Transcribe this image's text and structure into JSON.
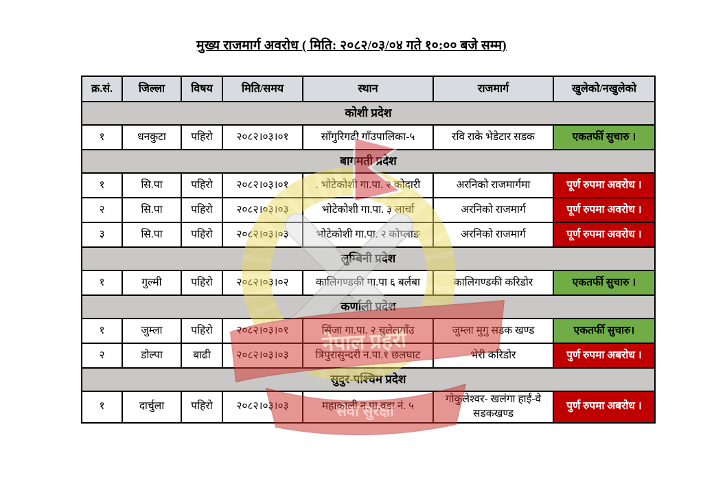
{
  "title": "मुख्य राजमार्ग अवरोध ( मिति: २०८२/०३/०४ गते १०:०० बजे सम्म)",
  "table": {
    "headers": [
      "क्र.सं.",
      "जिल्ला",
      "विषय",
      "मिति/समय",
      "स्थान",
      "राजमार्ग",
      "खुलेको/नखुलेको"
    ],
    "sections": [
      {
        "name": "कोशी प्रदेश",
        "rows": [
          {
            "sn": "१",
            "district": "धनकुटा",
            "subject": "पहिरो",
            "date": "२०८२।०३।०१",
            "location": "साँगुरिगढी गाँउपालिका-५",
            "highway": "रवि राके भेडेटार सडक",
            "status": "एकतर्फी सुचारु ।",
            "status_type": "open"
          }
        ]
      },
      {
        "name": "बागमती प्रदेश",
        "rows": [
          {
            "sn": "१",
            "district": "सि.पा",
            "subject": "पहिरो",
            "date": "२०८२।०३।०१",
            "location": ". भोटेकोशी गा.पा. २ कोदारी",
            "highway": "अरनिको राजमार्गमा",
            "status": "पूर्ण रुपमा अवरोध ।",
            "status_type": "blocked"
          },
          {
            "sn": "२",
            "district": "सि.पा",
            "subject": "पहिरो",
            "date": "२०८२।०३।०३",
            "location": "भोटेकोशी गा.पा. ३ लार्चा",
            "highway": "अरनिको राजमार्ग",
            "status": "पूर्ण रुपमा अवरोध ।",
            "status_type": "blocked"
          },
          {
            "sn": "३",
            "district": "सि.पा",
            "subject": "पहिरो",
            "date": "२०८२।०३।०३",
            "location": "भोटेकोशी गा.पा. २ कोप्लाङ",
            "highway": "अरनिको राजमार्ग",
            "status": "पूर्ण रुपमा अवरोध ।",
            "status_type": "blocked"
          }
        ]
      },
      {
        "name": "लुम्बिनी प्रदेश",
        "rows": [
          {
            "sn": "१",
            "district": "गुल्मी",
            "subject": "पहिरो",
            "date": "२०८२।०३।०२",
            "location": "कालिगण्डकी गा.पा ६ बर्लबा",
            "highway": "कालिगण्डकी करिडोर",
            "status": "एकतर्फी सुचारु ।",
            "status_type": "open"
          }
        ]
      },
      {
        "name": "कर्णाली प्रदेश",
        "rows": [
          {
            "sn": "१",
            "district": "जुम्ला",
            "subject": "पहिरो",
            "date": "२०८२।०३।०१",
            "location": "सिंजा गा.पा. २ चुलेलगाँउ",
            "highway": "जुम्ला मुगु सडक खण्ड",
            "status": "एकतर्फी सुचारु।",
            "status_type": "open"
          },
          {
            "sn": "२",
            "district": "डोल्पा",
            "subject": "बाढी",
            "date": "२०८२।०३।०३",
            "location": "त्रिपुरासुन्दरी न.पा.१ छलघाट",
            "highway": "भेरी करिडोर",
            "status": "पुर्ण रुपमा अबरोध ।",
            "status_type": "blocked"
          }
        ]
      },
      {
        "name": "सुदुर-पश्चिम प्रदेश",
        "rows": [
          {
            "sn": "१",
            "district": "दार्चुला",
            "subject": "पहिरो",
            "date": "२०८२।०३।०३",
            "location": "महाकाली न.पा.वडा नं. ५",
            "highway": "गोकुलेश्वर- खलंगा हाई-वे सडकखण्ड",
            "status": "पुर्ण रुपमा अबरोध ।",
            "status_type": "blocked"
          }
        ]
      }
    ]
  },
  "watermark": {
    "ribbon_text_top": "नेपाल प्रहरी",
    "ribbon_text_bottom": "सेवा सुरक्षा"
  },
  "colors": {
    "open_green": "#70ad47",
    "blocked_red": "#c00000",
    "header_bg": "#d8dce0",
    "section_bg": "#c9c8c6"
  }
}
